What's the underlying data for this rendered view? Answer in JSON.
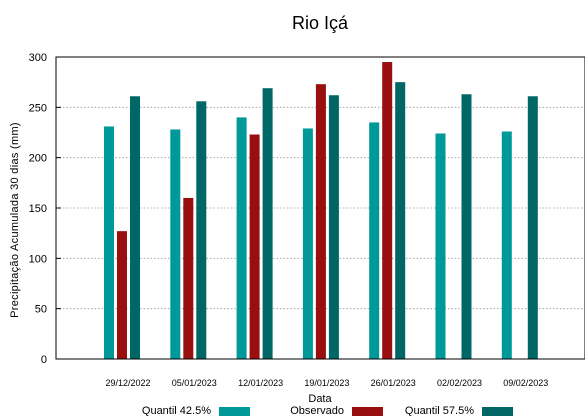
{
  "chart_data": {
    "type": "bar",
    "title": "Rio Içá",
    "xlabel": "Data",
    "ylabel": "Precipitação Acumulada 30 dias (mm)",
    "ylim": [
      0,
      300
    ],
    "yticks": [
      0,
      50,
      100,
      150,
      200,
      250,
      300
    ],
    "grid": true,
    "legend_position": "bottom",
    "categories": [
      "29/12/2022",
      "05/01/2023",
      "12/01/2023",
      "19/01/2023",
      "26/01/2023",
      "02/02/2023",
      "09/02/2023"
    ],
    "series": [
      {
        "name": "Quantil 42.5%",
        "color": "#009999",
        "values": [
          231,
          228,
          240,
          229,
          235,
          224,
          226
        ]
      },
      {
        "name": "Observado",
        "color": "#990f0f",
        "values": [
          127,
          160,
          223,
          273,
          295,
          null,
          null
        ]
      },
      {
        "name": "Quantil 57.5%",
        "color": "#006666",
        "values": [
          261,
          256,
          269,
          262,
          275,
          263,
          261
        ]
      }
    ]
  }
}
